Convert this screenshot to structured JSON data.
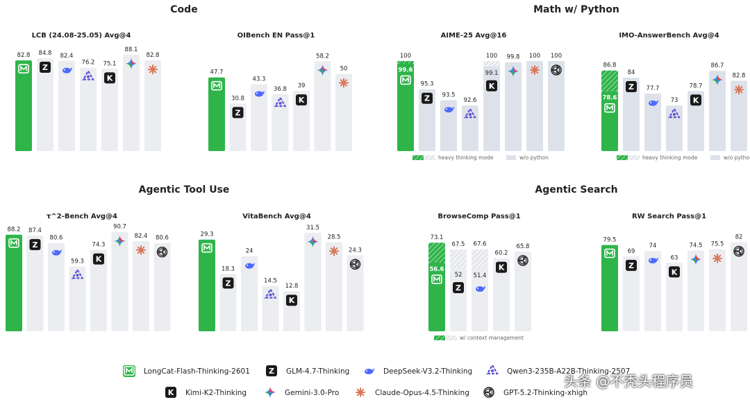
{
  "colors": {
    "longcat": "#2fb44a",
    "gray_bar": "#ebedf1",
    "blue_bar": "#dde2ea",
    "hatch": "#c9ced8",
    "deepseek": "#4d6bfe",
    "qwen": "#5a4fd6",
    "claude": "#d97757",
    "gemini": "#4285f4"
  },
  "models": [
    {
      "key": "longcat",
      "name": "LongCat-Flash-Thinking-2601",
      "icon": "longcat-icon"
    },
    {
      "key": "glm",
      "name": "GLM-4.7-Thinking",
      "icon": "glm-icon"
    },
    {
      "key": "deepseek",
      "name": "DeepSeek-V3.2-Thinking",
      "icon": "deepseek-icon"
    },
    {
      "key": "qwen",
      "name": "Qwen3-235B-A22B-Thinking-2507",
      "icon": "qwen-icon"
    },
    {
      "key": "kimi",
      "name": "Kimi-K2-Thinking",
      "icon": "kimi-icon"
    },
    {
      "key": "gemini",
      "name": "Gemini-3.0-Pro",
      "icon": "gemini-icon"
    },
    {
      "key": "claude",
      "name": "Claude-Opus-4.5-Thinking",
      "icon": "claude-icon"
    },
    {
      "key": "gpt",
      "name": "GPT-5.2-Thinking-xhigh",
      "icon": "gpt-icon"
    }
  ],
  "sections": [
    {
      "title": "Code"
    },
    {
      "title": "Math w/ Python"
    },
    {
      "title": "Agentic Tool Use"
    },
    {
      "title": "Agentic Search"
    }
  ],
  "chart_data": [
    {
      "type": "bar",
      "title": "LCB (24.08-25.05) Avg@4",
      "ylim": [
        0,
        100
      ],
      "categories": [
        "longcat",
        "glm",
        "deepseek",
        "qwen",
        "kimi",
        "gemini",
        "claude"
      ],
      "values": [
        82.8,
        84.8,
        82.4,
        76.2,
        75.1,
        88.1,
        82.8
      ]
    },
    {
      "type": "bar",
      "title": "OIBench EN Pass@1",
      "ylim": [
        0,
        70
      ],
      "categories": [
        "longcat",
        "glm",
        "deepseek",
        "qwen",
        "kimi",
        "gemini",
        "claude"
      ],
      "values": [
        47.7,
        30.8,
        43.3,
        36.8,
        39,
        58.2,
        50
      ]
    },
    {
      "type": "bar",
      "title": "AIME-25 Avg@16",
      "ylim": [
        85,
        100
      ],
      "categories": [
        "longcat",
        "glm",
        "deepseek",
        "qwen",
        "kimi",
        "gemini",
        "claude",
        "gpt"
      ],
      "values": [
        99.6,
        95.3,
        93.5,
        92.6,
        99.1,
        99.8,
        100,
        100
      ],
      "alt_values": [
        100,
        null,
        null,
        null,
        100,
        null,
        null,
        null
      ],
      "alt_label": "heavy thinking mode",
      "alt2_label": "w/o python"
    },
    {
      "type": "bar",
      "title": "IMO-AnswerBench Avg@4",
      "ylim": [
        55,
        90
      ],
      "categories": [
        "longcat",
        "glm",
        "deepseek",
        "qwen",
        "kimi",
        "gemini",
        "claude"
      ],
      "values": [
        78.6,
        84,
        77.7,
        73,
        78.7,
        86.7,
        82.8
      ],
      "alt_values": [
        86.8,
        null,
        null,
        null,
        null,
        null,
        null
      ],
      "alt_label": "heavy thinking mode",
      "alt2_label": "w/o python"
    },
    {
      "type": "bar",
      "title": "τ^2-Bench Avg@4",
      "ylim": [
        0,
        100
      ],
      "categories": [
        "longcat",
        "glm",
        "deepseek",
        "qwen",
        "kimi",
        "gemini",
        "claude",
        "gpt"
      ],
      "values": [
        88.2,
        87.4,
        80.6,
        59.3,
        74.3,
        90.7,
        82.4,
        80.6
      ]
    },
    {
      "type": "bar",
      "title": "VitaBench Avg@4",
      "ylim": [
        0,
        35
      ],
      "categories": [
        "longcat",
        "glm",
        "deepseek",
        "qwen",
        "kimi",
        "gemini",
        "claude",
        "gpt"
      ],
      "values": [
        29.3,
        18.3,
        24,
        14.5,
        12.8,
        31.5,
        28.5,
        24.3
      ]
    },
    {
      "type": "bar",
      "title": "BrowseComp Pass@1",
      "ylim": [
        0,
        80
      ],
      "categories": [
        "longcat",
        "glm",
        "deepseek",
        "kimi",
        "gpt"
      ],
      "values": [
        56.6,
        52,
        51.4,
        60.2,
        65.8
      ],
      "alt_values": [
        73.1,
        67.5,
        67.6,
        null,
        null
      ],
      "alt_label": "w/ context management"
    },
    {
      "type": "bar",
      "title": "RW Search Pass@1",
      "ylim": [
        0,
        90
      ],
      "categories": [
        "longcat",
        "glm",
        "deepseek",
        "kimi",
        "gemini",
        "claude",
        "gpt"
      ],
      "values": [
        79.5,
        69,
        74,
        63,
        74.5,
        75.5,
        82
      ]
    }
  ],
  "watermark": "头条 @不秃头程序员"
}
